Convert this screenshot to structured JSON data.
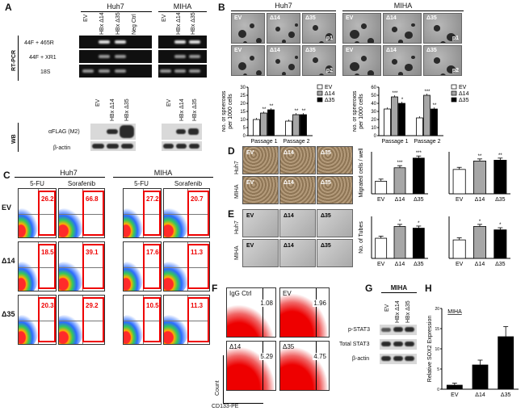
{
  "panels": {
    "A": {
      "letter": "A",
      "group_titles": [
        "Huh7",
        "MIHA"
      ],
      "lane_labels_huh7": [
        "EV",
        "HBx Δ14",
        "HBx Δ35",
        "Neg Ctrl"
      ],
      "lane_labels_miha": [
        "EV",
        "HBx Δ14",
        "HBx Δ35"
      ],
      "rtpcr_label": "RT-PCR",
      "rtpcr_rows": [
        "44F + 465R",
        "44F + XR1",
        "18S"
      ],
      "wb_label": "WB",
      "wb_rows": [
        "αFLAG (M2)",
        "β-actin"
      ]
    },
    "B": {
      "letter": "B",
      "group_titles": [
        "Huh7",
        "MIHA"
      ],
      "image_labels": [
        "EV",
        "Δ14",
        "Δ35"
      ],
      "passages": [
        "p1",
        "p2"
      ]
    },
    "C": {
      "letter": "C",
      "group_titles": [
        "Huh7",
        "MIHA"
      ],
      "drugs": [
        "5-FU",
        "Sorafenib"
      ],
      "rows": [
        "EV",
        "Δ14",
        "Δ35"
      ],
      "huh7_values": [
        [
          "26.2",
          "66.8"
        ],
        [
          "18.5",
          "39.1"
        ],
        [
          "20.3",
          "29.2"
        ]
      ],
      "miha_values": [
        [
          "27.2",
          "20.7"
        ],
        [
          "17.6",
          "11.3"
        ],
        [
          "10.5",
          "11.3"
        ]
      ]
    },
    "D": {
      "letter": "D",
      "row_labels": [
        "Huh7",
        "MIHA"
      ],
      "col_labels": [
        "EV",
        "Δ14",
        "Δ35"
      ]
    },
    "E": {
      "letter": "E",
      "row_labels": [
        "Huh7",
        "MIHA"
      ],
      "col_labels": [
        "EV",
        "Δ14",
        "Δ35"
      ]
    },
    "F": {
      "letter": "F",
      "plots": [
        {
          "label": "IgG Ctrl",
          "value": "1.08"
        },
        {
          "label": "EV",
          "value": "1.96"
        },
        {
          "label": "Δ14",
          "value": "5.29"
        },
        {
          "label": "Δ35",
          "value": "4.75"
        }
      ],
      "ylabel": "Count",
      "xlabel": "CD133-PE"
    },
    "G": {
      "letter": "G",
      "title": "MIHA",
      "lanes": [
        "EV",
        "HBx Δ14",
        "HBx Δ35"
      ],
      "rows": [
        "p-STAT3",
        "Total STAT3",
        "β-actin"
      ]
    },
    "H": {
      "letter": "H"
    }
  },
  "chart_data": [
    {
      "type": "bar",
      "panel": "B-left",
      "categories": [
        "Passage 1",
        "Passage 2"
      ],
      "series": [
        {
          "name": "EV",
          "values": [
            10,
            9
          ],
          "color": "#ffffff"
        },
        {
          "name": "Δ14",
          "values": [
            14,
            13
          ],
          "color": "#a6a6a6"
        },
        {
          "name": "Δ35",
          "values": [
            16,
            13
          ],
          "color": "#000000"
        }
      ],
      "significance": [
        [
          "",
          "**",
          "**"
        ],
        [
          "",
          "**",
          "**"
        ]
      ],
      "ylabel": "No. of spheroids per 1000 cells",
      "yticks": [
        0,
        5,
        10,
        15,
        20,
        25,
        30
      ],
      "ylim": [
        0,
        30
      ]
    },
    {
      "type": "bar",
      "panel": "B-right",
      "categories": [
        "Passage 1",
        "Passage 2"
      ],
      "series": [
        {
          "name": "EV",
          "values": [
            33,
            22
          ],
          "color": "#ffffff"
        },
        {
          "name": "Δ14",
          "values": [
            48,
            50
          ],
          "color": "#a6a6a6"
        },
        {
          "name": "Δ35",
          "values": [
            40,
            33
          ],
          "color": "#000000"
        }
      ],
      "significance": [
        [
          "",
          "***",
          "*"
        ],
        [
          "",
          "***",
          "**"
        ]
      ],
      "ylabel": "No. of spheroids per 1000 cells",
      "yticks": [
        0,
        10,
        20,
        30,
        40,
        50,
        60
      ],
      "ylim": [
        0,
        60
      ]
    },
    {
      "type": "bar",
      "panel": "D-huh7",
      "categories": [
        "EV",
        "Δ14",
        "Δ35"
      ],
      "values": [
        30,
        62,
        85
      ],
      "colors": [
        "#ffffff",
        "#a6a6a6",
        "#000000"
      ],
      "significance": [
        "",
        "***",
        "***"
      ],
      "ylabel": "Migrated cells / well",
      "yticks": [
        0,
        20,
        40,
        60,
        80,
        100
      ],
      "ylim": [
        0,
        100
      ]
    },
    {
      "type": "bar",
      "panel": "D-miha",
      "categories": [
        "EV",
        "Δ14",
        "Δ35"
      ],
      "values": [
        58,
        78,
        80
      ],
      "colors": [
        "#ffffff",
        "#a6a6a6",
        "#000000"
      ],
      "significance": [
        "",
        "**",
        "**"
      ],
      "ylabel": "Migrated cells / well",
      "yticks": [
        0,
        20,
        40,
        60,
        80,
        100
      ],
      "ylim": [
        0,
        100
      ]
    },
    {
      "type": "bar",
      "panel": "E-huh7",
      "categories": [
        "EV",
        "Δ14",
        "Δ35"
      ],
      "values": [
        12,
        19,
        18
      ],
      "colors": [
        "#ffffff",
        "#a6a6a6",
        "#000000"
      ],
      "significance": [
        "",
        "*",
        "*"
      ],
      "ylabel": "No. of Tubes",
      "yticks": [
        0,
        5,
        10,
        15,
        20,
        25
      ],
      "ylim": [
        0,
        25
      ]
    },
    {
      "type": "bar",
      "panel": "E-miha",
      "categories": [
        "EV",
        "Δ14",
        "Δ35"
      ],
      "values": [
        11,
        19,
        17
      ],
      "colors": [
        "#ffffff",
        "#a6a6a6",
        "#000000"
      ],
      "significance": [
        "",
        "*",
        "*"
      ],
      "ylabel": "No. of Tubes",
      "yticks": [
        0,
        5,
        10,
        15,
        20,
        25
      ],
      "ylim": [
        0,
        25
      ]
    },
    {
      "type": "bar",
      "panel": "H",
      "title": "MIHA",
      "categories": [
        "EV",
        "Δ14",
        "Δ35"
      ],
      "values": [
        1,
        6,
        13
      ],
      "errors": [
        0.5,
        1.2,
        2.5
      ],
      "color": "#000000",
      "ylabel": "Relative SOX2 Expression",
      "yticks": [
        0,
        5,
        10,
        15,
        20
      ],
      "ylim": [
        0,
        20
      ]
    }
  ]
}
